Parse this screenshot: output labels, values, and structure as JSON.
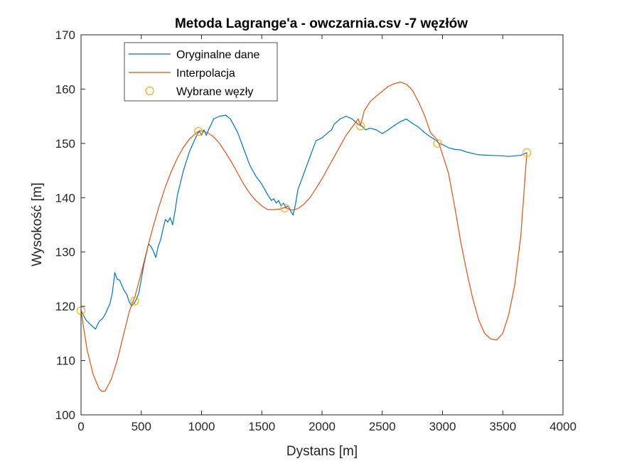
{
  "chart_data": {
    "type": "line",
    "title": "Metoda Lagrange'a - owczarnia.csv -7 węzłów",
    "xlabel": "Dystans [m]",
    "ylabel": "Wysokość [m]",
    "xlim": [
      0,
      4000
    ],
    "ylim": [
      100,
      170
    ],
    "xticks": [
      0,
      500,
      1000,
      1500,
      2000,
      2500,
      3000,
      3500,
      4000
    ],
    "yticks": [
      100,
      110,
      120,
      130,
      140,
      150,
      160,
      170
    ],
    "grid": false,
    "legend_position": "top-left",
    "colors": {
      "original": "#0072bd",
      "interpolation": "#d95319",
      "nodes": "#edb120",
      "axis": "#262626"
    },
    "legend": [
      "Oryginalne dane",
      "Interpolacja",
      "Wybrane węzły"
    ],
    "series": [
      {
        "name": "Oryginalne dane",
        "style": "line",
        "x": [
          0,
          40,
          80,
          120,
          150,
          180,
          200,
          220,
          240,
          260,
          280,
          300,
          320,
          340,
          360,
          380,
          400,
          420,
          440,
          460,
          480,
          500,
          520,
          540,
          560,
          580,
          600,
          620,
          640,
          660,
          680,
          700,
          720,
          740,
          760,
          780,
          800,
          850,
          900,
          950,
          980,
          1000,
          1020,
          1040,
          1060,
          1080,
          1100,
          1150,
          1200,
          1240,
          1300,
          1350,
          1400,
          1450,
          1500,
          1550,
          1580,
          1600,
          1620,
          1640,
          1660,
          1680,
          1700,
          1720,
          1740,
          1760,
          1780,
          1800,
          1850,
          1900,
          1950,
          2000,
          2050,
          2080,
          2100,
          2150,
          2200,
          2250,
          2300,
          2330,
          2360,
          2400,
          2450,
          2500,
          2550,
          2600,
          2650,
          2700,
          2750,
          2800,
          2850,
          2900,
          2950,
          2970,
          3000,
          3050,
          3100,
          3150,
          3200,
          3300,
          3400,
          3500,
          3550,
          3600,
          3650,
          3700
        ],
        "y": [
          119.2,
          117.5,
          116.6,
          115.8,
          117.2,
          117.8,
          118.5,
          119.5,
          120.5,
          122.5,
          126.2,
          125.0,
          124.8,
          123.8,
          122.8,
          122.2,
          120.8,
          120.1,
          120.5,
          121.3,
          122.5,
          125.0,
          127.5,
          129.5,
          131.5,
          131.0,
          130.2,
          129.0,
          131.0,
          132.2,
          134.2,
          136.0,
          135.5,
          136.3,
          135.0,
          137.5,
          140.5,
          145.0,
          148.5,
          151.0,
          152.3,
          151.5,
          152.5,
          151.5,
          152.6,
          153.5,
          154.5,
          155.0,
          155.2,
          154.5,
          152.0,
          149.0,
          146.0,
          144.0,
          142.5,
          140.5,
          139.5,
          139.8,
          139.0,
          139.5,
          138.5,
          139.0,
          138.2,
          138.5,
          137.5,
          136.8,
          138.8,
          141.5,
          144.5,
          147.5,
          150.5,
          151.0,
          152.0,
          152.5,
          153.5,
          154.5,
          155.0,
          154.5,
          153.5,
          153.2,
          152.5,
          152.8,
          152.5,
          151.8,
          152.5,
          153.3,
          154.0,
          154.5,
          153.7,
          153.0,
          152.0,
          151.2,
          150.5,
          150.0,
          149.8,
          149.2,
          148.9,
          148.8,
          148.4,
          147.9,
          147.8,
          147.7,
          147.6,
          147.7,
          147.8,
          148.3
        ]
      },
      {
        "name": "Interpolacja",
        "style": "line",
        "x": [
          0,
          50,
          100,
          150,
          175,
          200,
          250,
          300,
          350,
          400,
          450,
          500,
          550,
          600,
          650,
          700,
          750,
          800,
          850,
          900,
          950,
          980,
          1000,
          1050,
          1100,
          1150,
          1200,
          1250,
          1300,
          1350,
          1400,
          1450,
          1500,
          1550,
          1600,
          1650,
          1690,
          1750,
          1800,
          1850,
          1900,
          1950,
          2000,
          2050,
          2100,
          2150,
          2200,
          2250,
          2300,
          2320,
          2350,
          2400,
          2450,
          2500,
          2550,
          2600,
          2650,
          2700,
          2750,
          2800,
          2850,
          2900,
          2950,
          2970,
          3000,
          3050,
          3100,
          3150,
          3200,
          3250,
          3300,
          3350,
          3400,
          3450,
          3500,
          3550,
          3600,
          3650,
          3700
        ],
        "y": [
          119.2,
          112.0,
          107.5,
          104.8,
          104.3,
          104.4,
          106.5,
          110.0,
          114.5,
          119.0,
          122.0,
          126.2,
          130.6,
          134.8,
          138.6,
          142.0,
          144.9,
          147.3,
          149.3,
          150.8,
          151.8,
          152.3,
          152.3,
          152.0,
          151.2,
          150.0,
          148.3,
          146.5,
          144.5,
          142.5,
          140.8,
          139.5,
          138.5,
          137.8,
          137.8,
          137.9,
          138.2,
          137.7,
          138.0,
          138.8,
          140.0,
          141.7,
          143.5,
          145.5,
          147.5,
          149.5,
          151.5,
          153.0,
          154.5,
          153.3,
          156.0,
          157.7,
          158.7,
          159.6,
          160.5,
          161.0,
          161.3,
          160.9,
          159.8,
          157.7,
          155.2,
          152.0,
          150.8,
          150.0,
          148.0,
          144.5,
          138.5,
          132.0,
          126.5,
          121.5,
          117.5,
          115.0,
          114.0,
          113.8,
          115.0,
          118.5,
          124.0,
          133.0,
          148.3
        ]
      },
      {
        "name": "Wybrane węzły",
        "style": "markers",
        "x": [
          0,
          445,
          975,
          1690,
          2320,
          2960,
          3700
        ],
        "y": [
          119.2,
          121.0,
          152.2,
          138.1,
          153.2,
          150.0,
          148.3
        ]
      }
    ]
  }
}
